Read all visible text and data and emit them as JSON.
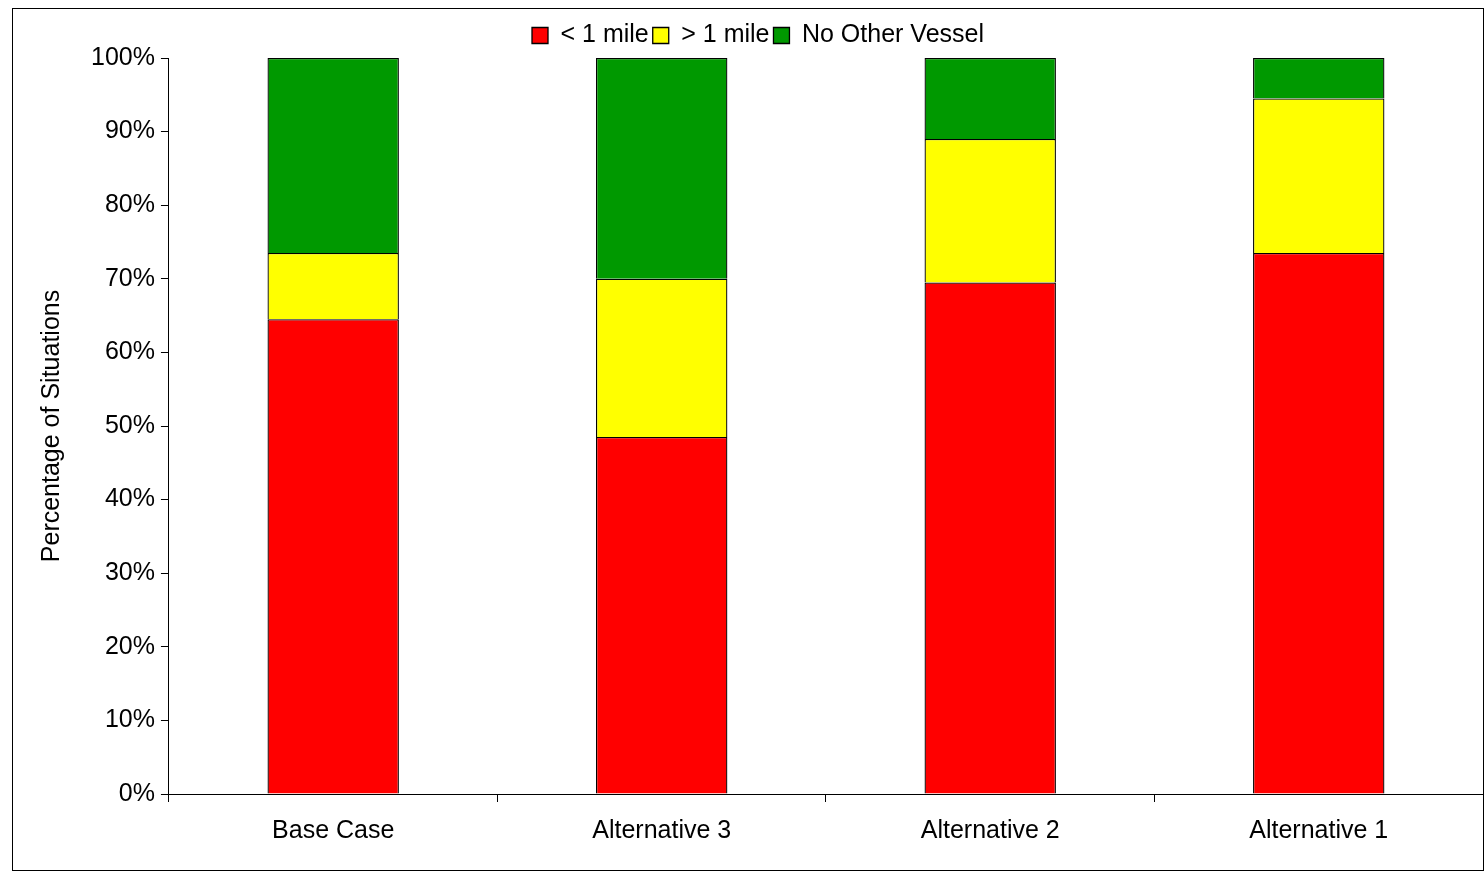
{
  "chart_data": {
    "type": "bar",
    "stacked": true,
    "ylabel": "Percentage of Situations",
    "categories": [
      "Base Case",
      "Alternative 3",
      "Alternative 2",
      "Alternative 1"
    ],
    "series": [
      {
        "name": "< 1 mile",
        "color": "#ff0000",
        "values": [
          64.5,
          48.5,
          69.5,
          73.5
        ]
      },
      {
        "name": "> 1 mile",
        "color": "#ffff00",
        "values": [
          9,
          21.5,
          19.5,
          21
        ]
      },
      {
        "name": "No Other Vessel",
        "color": "#009900",
        "values": [
          26.5,
          30,
          11,
          5.5
        ]
      }
    ],
    "ylim": [
      0,
      100
    ],
    "yticks": [
      {
        "value": 0,
        "label": "0%"
      },
      {
        "value": 10,
        "label": "10%"
      },
      {
        "value": 20,
        "label": "20%"
      },
      {
        "value": 30,
        "label": "30%"
      },
      {
        "value": 40,
        "label": "40%"
      },
      {
        "value": 50,
        "label": "50%"
      },
      {
        "value": 60,
        "label": "60%"
      },
      {
        "value": 70,
        "label": "70%"
      },
      {
        "value": 80,
        "label": "80%"
      },
      {
        "value": 90,
        "label": "90%"
      },
      {
        "value": 100,
        "label": "100%"
      }
    ],
    "grid": false,
    "legend": "top"
  }
}
